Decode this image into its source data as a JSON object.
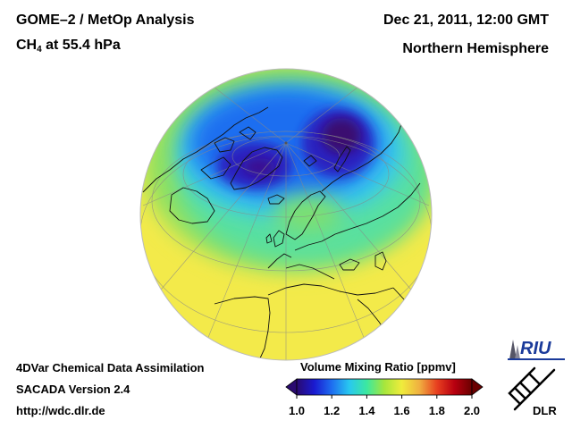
{
  "header": {
    "title_line1": "GOME–2 / MetOp Analysis",
    "species_main": "CH",
    "species_sub": "4",
    "level": " at 55.4 hPa",
    "datetime": "Dec 21, 2011, 12:00 GMT",
    "region": "Northern Hemisphere"
  },
  "footer": {
    "method": "4DVar Chemical Data Assimilation",
    "version": "SACADA Version 2.4",
    "url": "http://wdc.dlr.de"
  },
  "colorbar": {
    "title": "Volume Mixing Ratio [ppmv]",
    "ticks": [
      "1.0",
      "1.2",
      "1.4",
      "1.6",
      "1.8",
      "2.0"
    ],
    "min": 1.0,
    "max": 2.0,
    "colors": [
      "#2a0a70",
      "#1a1ad0",
      "#1e6ef0",
      "#28c8f0",
      "#3ce8a0",
      "#a6e63c",
      "#f0ec3c",
      "#f0b040",
      "#e84020",
      "#b80010",
      "#6a0000"
    ]
  },
  "logos": {
    "riu": "RIU",
    "dlr": "DLR"
  },
  "map": {
    "projection": "orthographic",
    "hemisphere": "Northern Hemisphere",
    "variable": "CH4 volume mixing ratio",
    "units": "ppmv",
    "background_color": "#f5ec50"
  }
}
